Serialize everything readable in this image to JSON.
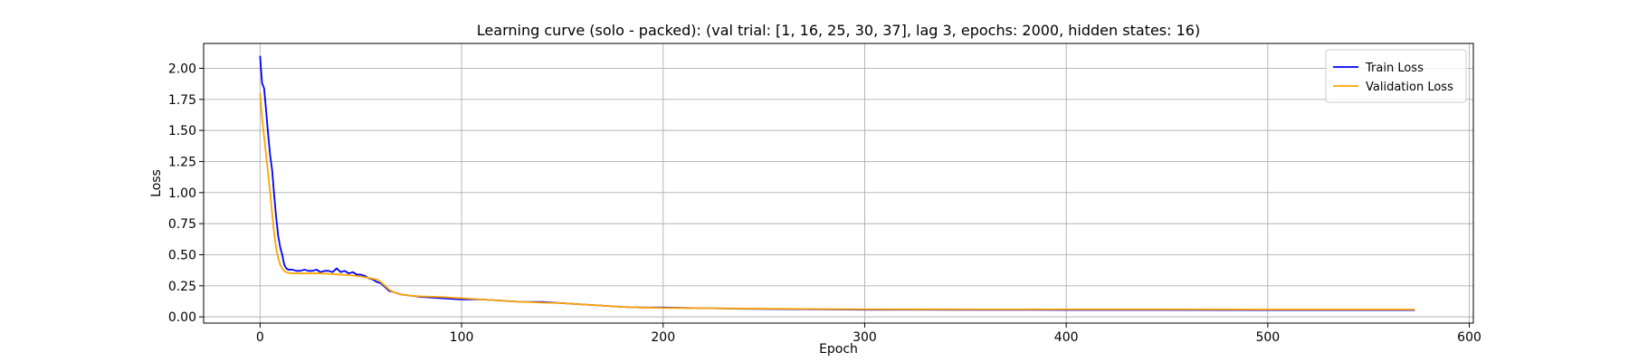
{
  "chart_data": {
    "type": "line",
    "title": "Learning curve (solo - packed): (val trial: [1, 16, 25, 30, 37], lag 3, epochs: 2000, hidden states: 16)",
    "xlabel": "Epoch",
    "ylabel": "Loss",
    "xlim": [
      -28,
      602
    ],
    "ylim": [
      -0.05,
      2.2
    ],
    "x_ticks": [
      0,
      100,
      200,
      300,
      400,
      500,
      600
    ],
    "x_tick_labels": [
      "0",
      "100",
      "200",
      "300",
      "400",
      "500",
      "600"
    ],
    "y_ticks": [
      0.0,
      0.25,
      0.5,
      0.75,
      1.0,
      1.25,
      1.5,
      1.75,
      2.0
    ],
    "y_tick_labels": [
      "0.00",
      "0.25",
      "0.50",
      "0.75",
      "1.00",
      "1.25",
      "1.50",
      "1.75",
      "2.00"
    ],
    "grid": true,
    "legend_position": "top-right",
    "series": [
      {
        "name": "Train Loss",
        "color": "#0000ff",
        "x": [
          0,
          1,
          2,
          3,
          4,
          5,
          6,
          7,
          8,
          9,
          10,
          11,
          12,
          13,
          14,
          16,
          18,
          20,
          22,
          24,
          26,
          28,
          30,
          32,
          34,
          36,
          38,
          40,
          42,
          44,
          46,
          48,
          50,
          52,
          54,
          56,
          58,
          60,
          62,
          64,
          66,
          70,
          75,
          80,
          90,
          100,
          110,
          120,
          130,
          140,
          150,
          160,
          170,
          180,
          190,
          200,
          220,
          240,
          260,
          280,
          300,
          350,
          400,
          450,
          500,
          550,
          573
        ],
        "y": [
          2.1,
          1.88,
          1.84,
          1.66,
          1.47,
          1.3,
          1.18,
          0.98,
          0.8,
          0.65,
          0.56,
          0.5,
          0.42,
          0.39,
          0.38,
          0.38,
          0.37,
          0.37,
          0.38,
          0.37,
          0.37,
          0.38,
          0.36,
          0.37,
          0.37,
          0.36,
          0.39,
          0.36,
          0.37,
          0.35,
          0.36,
          0.34,
          0.34,
          0.33,
          0.31,
          0.3,
          0.28,
          0.27,
          0.24,
          0.21,
          0.2,
          0.18,
          0.17,
          0.16,
          0.15,
          0.14,
          0.14,
          0.13,
          0.12,
          0.12,
          0.11,
          0.1,
          0.09,
          0.08,
          0.075,
          0.075,
          0.07,
          0.065,
          0.062,
          0.06,
          0.058,
          0.057,
          0.056,
          0.056,
          0.055,
          0.055,
          0.055
        ]
      },
      {
        "name": "Validation Loss",
        "color": "#ffa500",
        "x": [
          0,
          1,
          2,
          3,
          4,
          5,
          6,
          7,
          8,
          9,
          10,
          11,
          12,
          13,
          14,
          16,
          18,
          20,
          25,
          30,
          35,
          40,
          45,
          50,
          55,
          58,
          60,
          62,
          64,
          66,
          70,
          75,
          80,
          90,
          100,
          110,
          120,
          130,
          140,
          150,
          160,
          170,
          180,
          190,
          200,
          220,
          240,
          260,
          280,
          300,
          350,
          400,
          450,
          500,
          550,
          573
        ],
        "y": [
          1.8,
          1.6,
          1.45,
          1.3,
          1.15,
          1.0,
          0.83,
          0.67,
          0.55,
          0.47,
          0.42,
          0.39,
          0.37,
          0.36,
          0.355,
          0.35,
          0.35,
          0.35,
          0.35,
          0.35,
          0.345,
          0.34,
          0.335,
          0.325,
          0.31,
          0.3,
          0.28,
          0.25,
          0.22,
          0.2,
          0.18,
          0.17,
          0.165,
          0.16,
          0.15,
          0.14,
          0.13,
          0.12,
          0.115,
          0.11,
          0.1,
          0.09,
          0.08,
          0.075,
          0.072,
          0.07,
          0.067,
          0.065,
          0.063,
          0.061,
          0.06,
          0.06,
          0.06,
          0.059,
          0.059,
          0.059
        ]
      }
    ]
  }
}
